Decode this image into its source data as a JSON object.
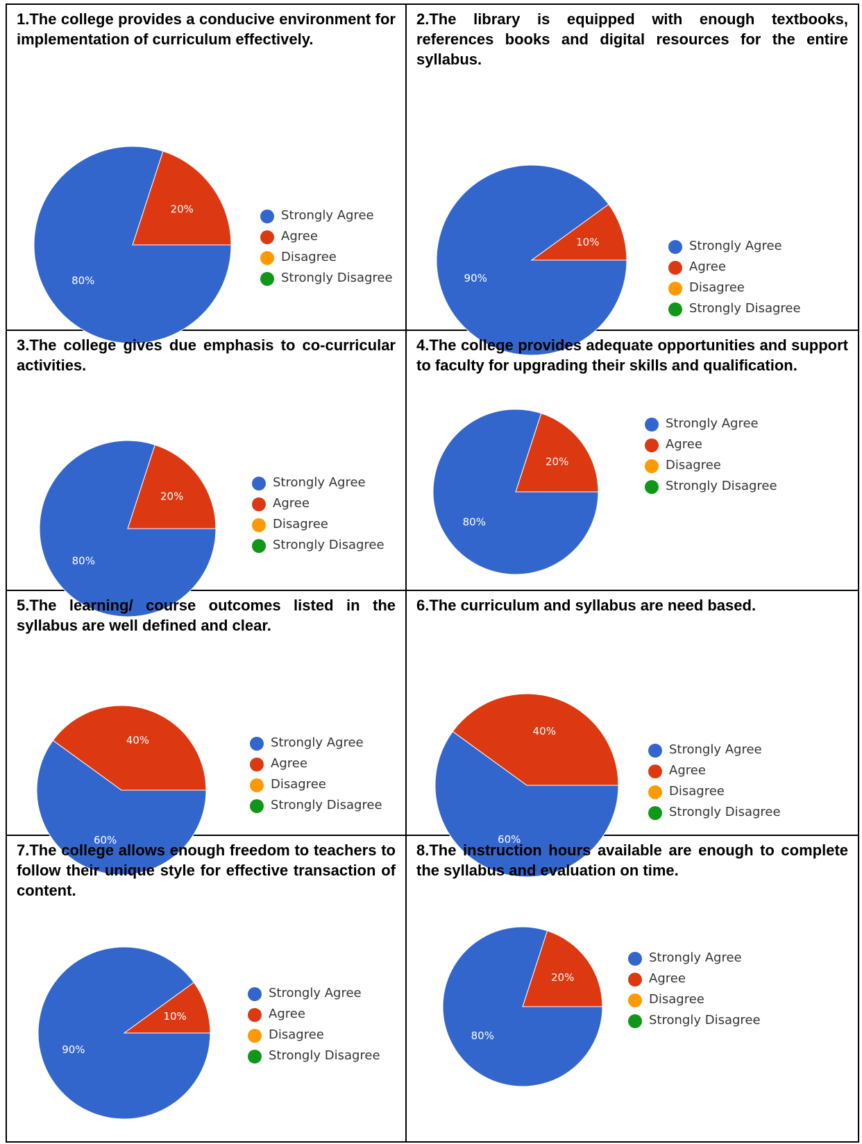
{
  "colors": {
    "strongly_agree": "#3366cc",
    "agree": "#dc3912",
    "disagree": "#ff9900",
    "strongly_disagree": "#109618"
  },
  "legend_labels": [
    "Strongly Agree",
    "Agree",
    "Disagree",
    "Strongly Disagree"
  ],
  "chart_data": [
    {
      "type": "pie",
      "title": "1.The college provides a conducive environment for implementation of curriculum effectively.",
      "categories": [
        "Strongly Agree",
        "Agree",
        "Disagree",
        "Strongly Disagree"
      ],
      "values": [
        80,
        20,
        0,
        0
      ],
      "labels": [
        "80%",
        "20%",
        "",
        ""
      ],
      "legend_position": "right"
    },
    {
      "type": "pie",
      "title": "2.The library is equipped with enough textbooks, references books and digital resources for the entire syllabus.",
      "categories": [
        "Strongly Agree",
        "Agree",
        "Disagree",
        "Strongly Disagree"
      ],
      "values": [
        90,
        10,
        0,
        0
      ],
      "labels": [
        "90%",
        "10%",
        "",
        ""
      ],
      "legend_position": "right"
    },
    {
      "type": "pie",
      "title": "3.The college gives due emphasis to co-curricular activities.",
      "categories": [
        "Strongly Agree",
        "Agree",
        "Disagree",
        "Strongly Disagree"
      ],
      "values": [
        80,
        20,
        0,
        0
      ],
      "labels": [
        "80%",
        "20%",
        "",
        ""
      ],
      "legend_position": "right"
    },
    {
      "type": "pie",
      "title": "4.The college provides adequate opportunities and support to faculty for upgrading their skills and qualification.",
      "categories": [
        "Strongly Agree",
        "Agree",
        "Disagree",
        "Strongly Disagree"
      ],
      "values": [
        80,
        20,
        0,
        0
      ],
      "labels": [
        "80%",
        "20%",
        "",
        ""
      ],
      "legend_position": "right"
    },
    {
      "type": "pie",
      "title": "5.The learning/ course outcomes listed in the syllabus are well defined and clear.",
      "categories": [
        "Strongly Agree",
        "Agree",
        "Disagree",
        "Strongly Disagree"
      ],
      "values": [
        60,
        40,
        0,
        0
      ],
      "labels": [
        "60%",
        "40%",
        "",
        ""
      ],
      "legend_position": "right"
    },
    {
      "type": "pie",
      "title": "6.The curriculum and syllabus are need based.",
      "categories": [
        "Strongly Agree",
        "Agree",
        "Disagree",
        "Strongly Disagree"
      ],
      "values": [
        60,
        40,
        0,
        0
      ],
      "labels": [
        "60%",
        "40%",
        "",
        ""
      ],
      "legend_position": "right"
    },
    {
      "type": "pie",
      "title": "7.The college allows enough freedom to teachers to follow their unique style for effective transaction of content.",
      "categories": [
        "Strongly Agree",
        "Agree",
        "Disagree",
        "Strongly Disagree"
      ],
      "values": [
        90,
        10,
        0,
        0
      ],
      "labels": [
        "90%",
        "10%",
        "",
        ""
      ],
      "legend_position": "right"
    },
    {
      "type": "pie",
      "title": "8.The instruction hours available are enough to complete the syllabus and evaluation on time.",
      "categories": [
        "Strongly Agree",
        "Agree",
        "Disagree",
        "Strongly Disagree"
      ],
      "values": [
        80,
        20,
        0,
        0
      ],
      "labels": [
        "80%",
        "20%",
        "",
        ""
      ],
      "legend_position": "right"
    }
  ]
}
